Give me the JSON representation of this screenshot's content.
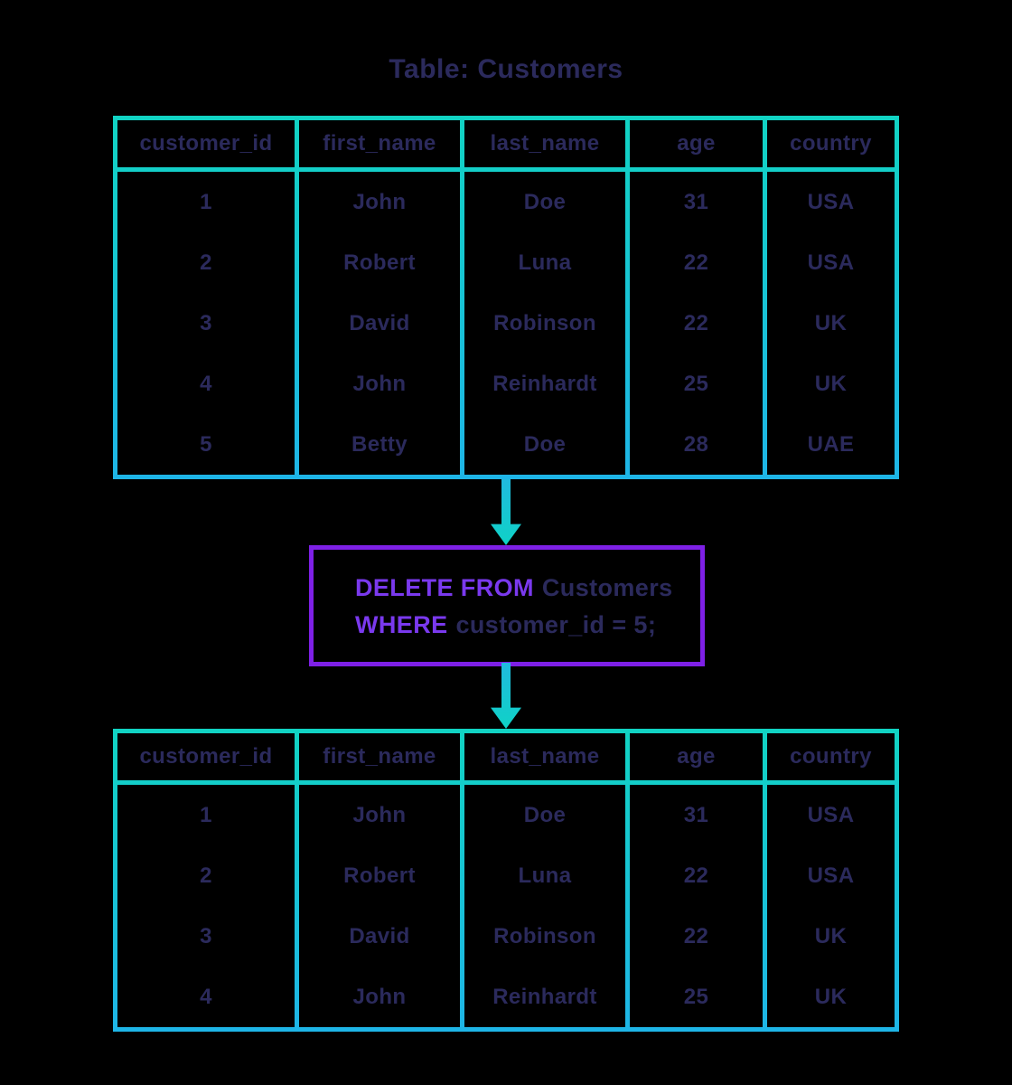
{
  "title": "Table: Customers",
  "columns": [
    "customer_id",
    "first_name",
    "last_name",
    "age",
    "country"
  ],
  "table_before_rows": [
    [
      "1",
      "John",
      "Doe",
      "31",
      "USA"
    ],
    [
      "2",
      "Robert",
      "Luna",
      "22",
      "USA"
    ],
    [
      "3",
      "David",
      "Robinson",
      "22",
      "UK"
    ],
    [
      "4",
      "John",
      "Reinhardt",
      "25",
      "UK"
    ],
    [
      "5",
      "Betty",
      "Doe",
      "28",
      "UAE"
    ]
  ],
  "sql": {
    "line1": {
      "keyword": "DELETE FROM",
      "rest": "Customers"
    },
    "line2": {
      "keyword": "WHERE",
      "rest": "customer_id = 5;"
    }
  },
  "table_after_rows": [
    [
      "1",
      "John",
      "Doe",
      "31",
      "USA"
    ],
    [
      "2",
      "Robert",
      "Luna",
      "22",
      "USA"
    ],
    [
      "3",
      "David",
      "Robinson",
      "22",
      "UK"
    ],
    [
      "4",
      "John",
      "Reinhardt",
      "25",
      "UK"
    ]
  ],
  "colors": {
    "background": "#000000",
    "text_navy": "#2b2a5c",
    "table_border_top": "#11d3c3",
    "table_border_bottom": "#1eb5e7",
    "arrow_top": "#20bade",
    "arrow_bottom": "#0fd2c7",
    "sql_box_border": "#7e20e6",
    "sql_keyword": "#7a39ee"
  }
}
